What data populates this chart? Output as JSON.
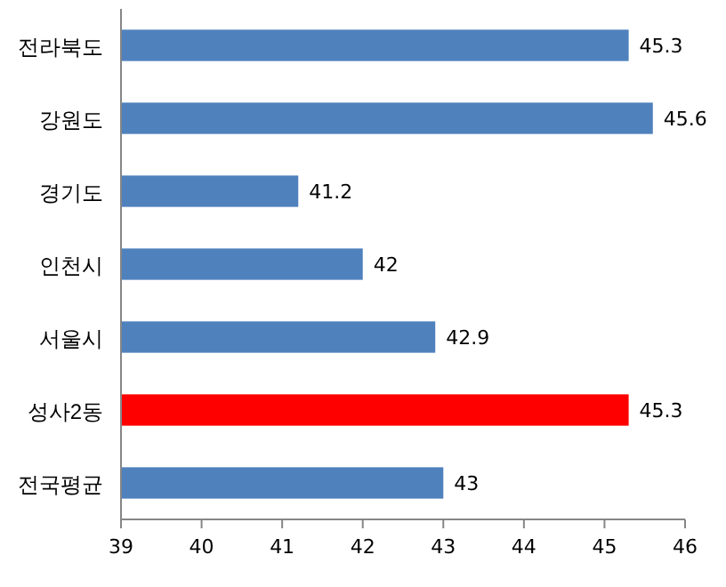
{
  "chart_data": {
    "type": "bar",
    "orientation": "horizontal",
    "categories": [
      "전라북도",
      "강원도",
      "경기도",
      "인천시",
      "서울시",
      "성사2동",
      "전국평균"
    ],
    "values": [
      45.3,
      45.6,
      41.2,
      42,
      42.9,
      45.3,
      43
    ],
    "colors": [
      "#4f81bd",
      "#4f81bd",
      "#4f81bd",
      "#4f81bd",
      "#4f81bd",
      "#ff0000",
      "#4f81bd"
    ],
    "xlim": [
      39,
      46
    ],
    "xticks": [
      39,
      40,
      41,
      42,
      43,
      44,
      45,
      46
    ],
    "data_labels": true
  }
}
